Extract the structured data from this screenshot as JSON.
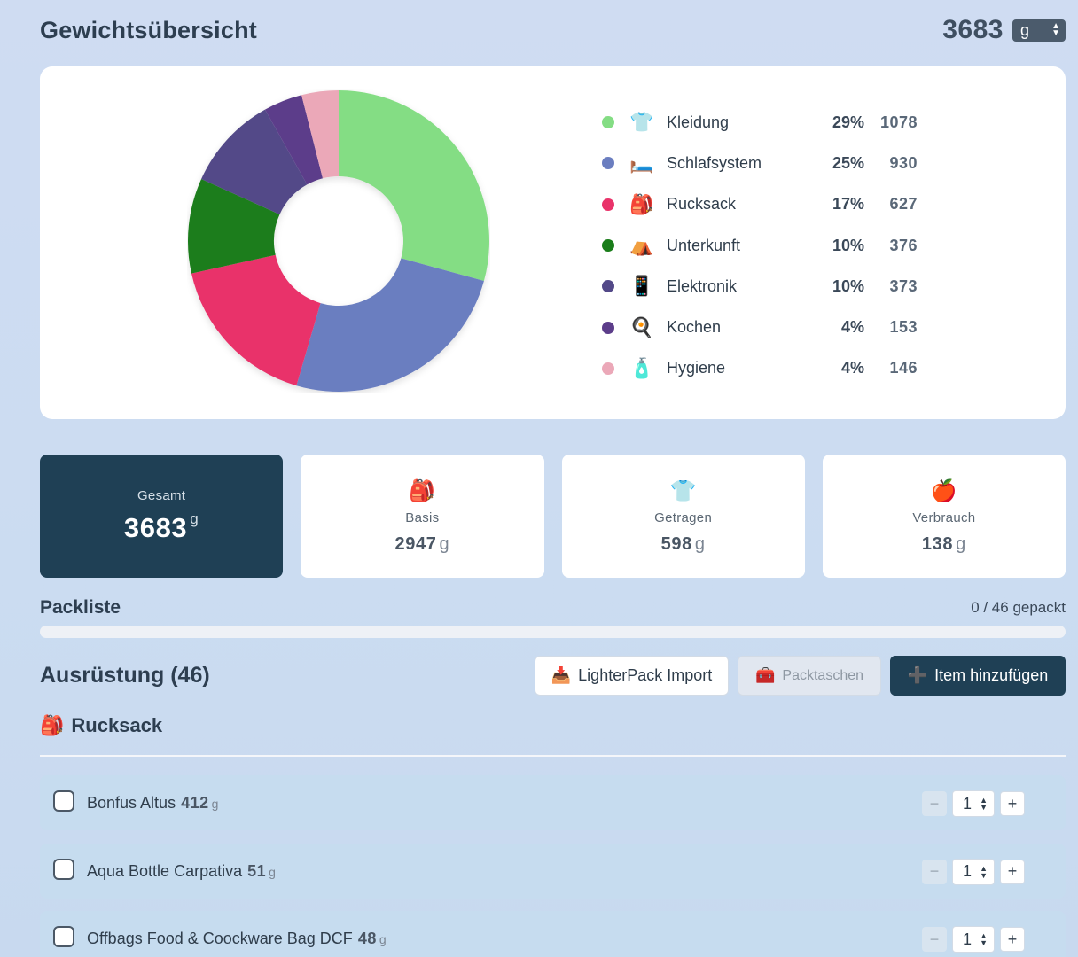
{
  "header": {
    "title": "Gewichtsübersicht",
    "total": "3683",
    "unit": "g"
  },
  "legend": [
    {
      "label": "Kleidung",
      "icon": "👕",
      "icon_name": "shirt-icon",
      "pct": "29%",
      "value": "1078",
      "color": "#84dd84"
    },
    {
      "label": "Schlafsystem",
      "icon": "🛏️",
      "icon_name": "bed-icon",
      "pct": "25%",
      "value": "930",
      "color": "#6b7ec0"
    },
    {
      "label": "Rucksack",
      "icon": "🎒",
      "icon_name": "backpack-icon",
      "pct": "17%",
      "value": "627",
      "color": "#e9336a"
    },
    {
      "label": "Unterkunft",
      "icon": "⛺",
      "icon_name": "tent-icon",
      "pct": "10%",
      "value": "376",
      "color": "#1a7d1a"
    },
    {
      "label": "Elektronik",
      "icon": "📱",
      "icon_name": "phone-icon",
      "pct": "10%",
      "value": "373",
      "color": "#534988"
    },
    {
      "label": "Kochen",
      "icon": "🍳",
      "icon_name": "pan-icon",
      "pct": "4%",
      "value": "153",
      "color": "#5c3d8a"
    },
    {
      "label": "Hygiene",
      "icon": "🧴",
      "icon_name": "lotion-icon",
      "pct": "4%",
      "value": "146",
      "color": "#eba8b8"
    }
  ],
  "stats": {
    "gesamt": {
      "label": "Gesamt",
      "value": "3683",
      "unit": "g"
    },
    "basis": {
      "label": "Basis",
      "value": "2947",
      "unit": "g",
      "icon": "🎒"
    },
    "getragen": {
      "label": "Getragen",
      "value": "598",
      "unit": "g",
      "icon": "👕"
    },
    "verbrauch": {
      "label": "Verbrauch",
      "value": "138",
      "unit": "g",
      "icon": "🍎"
    }
  },
  "packliste": {
    "title": "Packliste",
    "count": "0 / 46 gepackt",
    "progress_fraction": 0
  },
  "equipment": {
    "title": "Ausrüstung (46)",
    "import_label": "LighterPack Import",
    "import_icon": "📥",
    "bags_label": "Packtaschen",
    "bags_icon": "🧰",
    "add_label": "Item hinzufügen",
    "add_icon": "➕"
  },
  "category": {
    "icon": "🎒",
    "title": "Rucksack"
  },
  "items": [
    {
      "name": "Bonfus Altus",
      "weight": "412",
      "unit": "g",
      "qty": "1"
    },
    {
      "name": "Aqua Bottle Carpativa",
      "weight": "51",
      "unit": "g",
      "qty": "1"
    },
    {
      "name": "Offbags Food & Coockware Bag DCF",
      "weight": "48",
      "unit": "g",
      "qty": "1"
    }
  ],
  "qty_controls": {
    "minus": "−",
    "plus": "+"
  }
}
